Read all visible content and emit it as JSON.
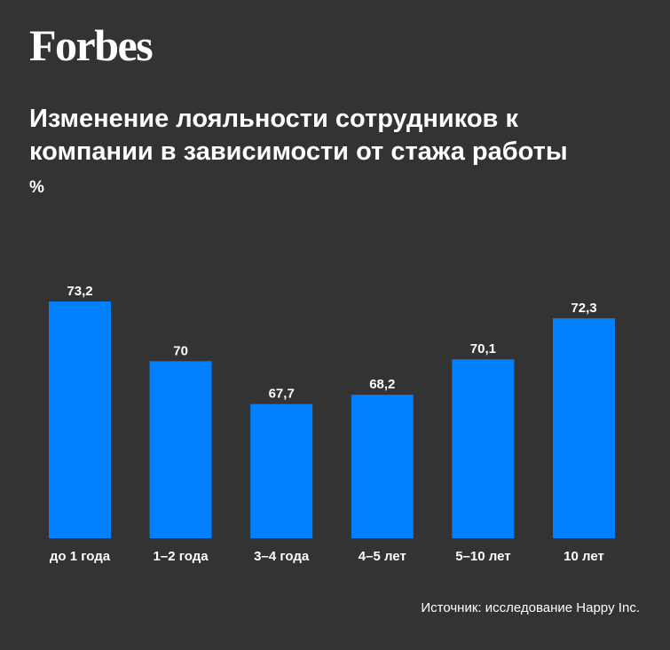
{
  "brand": {
    "logo_text": "Forbes"
  },
  "header": {
    "title": "Изменение лояльности сотрудников к компании в зависимости от стажа работы",
    "unit": "%"
  },
  "footer": {
    "source": "Источник: исследование Happy Inc."
  },
  "colors": {
    "background": "#333333",
    "bar": "#0080ff",
    "text": "#ffffff"
  },
  "chart_data": {
    "type": "bar",
    "categories": [
      "до 1 года",
      "1–2 года",
      "3–4 года",
      "4–5 лет",
      "5–10 лет",
      "10 лет"
    ],
    "values": [
      73.2,
      70,
      67.7,
      68.2,
      70.1,
      72.3
    ],
    "value_labels": [
      "73,2",
      "70",
      "67,7",
      "68,2",
      "70,1",
      "72,3"
    ],
    "ylabel": "%",
    "grid": false,
    "legend": "none"
  }
}
